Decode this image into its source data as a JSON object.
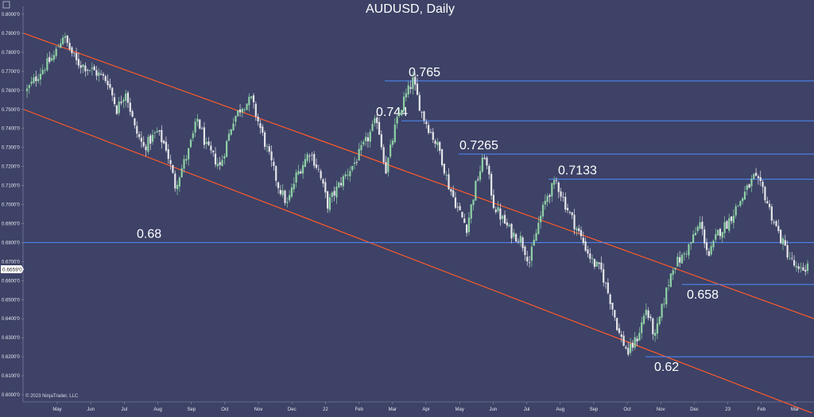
{
  "chart_data": {
    "type": "candlestick",
    "title": "AUDUSD, Daily",
    "symbol": "AUDUSD",
    "timeframe": "Daily",
    "copyright": "© 2023 NinjaTrader, LLC",
    "ylim": [
      0.6,
      0.8
    ],
    "y_ticks": [
      "0.8000'0",
      "0.7900'0",
      "0.7800'0",
      "0.7700'0",
      "0.7600'0",
      "0.7500'0",
      "0.7400'0",
      "0.7300'0",
      "0.7200'0",
      "0.7100'0",
      "0.7000'0",
      "0.6900'0",
      "0.6800'0",
      "0.6700'0",
      "0.6600'0",
      "0.6500'0",
      "0.6400'0",
      "0.6300'0",
      "0.6200'0",
      "0.6100'0",
      "0.6000'0"
    ],
    "x_ticks": [
      "May",
      "Jun",
      "Jul",
      "Aug",
      "Sep",
      "Oct",
      "Nov",
      "Dec",
      "22",
      "Feb",
      "Mar",
      "Apr",
      "May",
      "Jun",
      "Jul",
      "Aug",
      "Sep",
      "Oct",
      "Nov",
      "Dec",
      "23",
      "Feb",
      "Mar"
    ],
    "current_price": {
      "value": 0.6659,
      "label": "0.6659'0"
    },
    "price_path": [
      [
        0,
        0.76
      ],
      [
        6,
        0.77
      ],
      [
        12,
        0.778
      ],
      [
        16,
        0.789
      ],
      [
        22,
        0.775
      ],
      [
        30,
        0.77
      ],
      [
        36,
        0.765
      ],
      [
        40,
        0.75
      ],
      [
        44,
        0.76
      ],
      [
        48,
        0.74
      ],
      [
        52,
        0.73
      ],
      [
        58,
        0.738
      ],
      [
        62,
        0.73
      ],
      [
        66,
        0.71
      ],
      [
        72,
        0.728
      ],
      [
        76,
        0.745
      ],
      [
        80,
        0.73
      ],
      [
        86,
        0.72
      ],
      [
        92,
        0.745
      ],
      [
        96,
        0.752
      ],
      [
        100,
        0.755
      ],
      [
        104,
        0.74
      ],
      [
        108,
        0.725
      ],
      [
        112,
        0.71
      ],
      [
        116,
        0.7
      ],
      [
        120,
        0.715
      ],
      [
        126,
        0.728
      ],
      [
        130,
        0.718
      ],
      [
        134,
        0.7
      ],
      [
        140,
        0.712
      ],
      [
        146,
        0.722
      ],
      [
        152,
        0.735
      ],
      [
        156,
        0.745
      ],
      [
        160,
        0.718
      ],
      [
        164,
        0.74
      ],
      [
        168,
        0.755
      ],
      [
        172,
        0.765
      ],
      [
        176,
        0.748
      ],
      [
        180,
        0.738
      ],
      [
        184,
        0.728
      ],
      [
        188,
        0.71
      ],
      [
        192,
        0.698
      ],
      [
        196,
        0.688
      ],
      [
        200,
        0.71
      ],
      [
        204,
        0.726
      ],
      [
        208,
        0.7
      ],
      [
        212,
        0.692
      ],
      [
        216,
        0.685
      ],
      [
        220,
        0.682
      ],
      [
        224,
        0.67
      ],
      [
        228,
        0.69
      ],
      [
        232,
        0.705
      ],
      [
        236,
        0.712
      ],
      [
        240,
        0.7
      ],
      [
        244,
        0.69
      ],
      [
        248,
        0.68
      ],
      [
        252,
        0.67
      ],
      [
        256,
        0.665
      ],
      [
        260,
        0.65
      ],
      [
        264,
        0.632
      ],
      [
        268,
        0.622
      ],
      [
        272,
        0.63
      ],
      [
        276,
        0.645
      ],
      [
        280,
        0.63
      ],
      [
        284,
        0.65
      ],
      [
        288,
        0.668
      ],
      [
        292,
        0.672
      ],
      [
        296,
        0.68
      ],
      [
        300,
        0.69
      ],
      [
        304,
        0.673
      ],
      [
        308,
        0.685
      ],
      [
        312,
        0.69
      ],
      [
        316,
        0.698
      ],
      [
        320,
        0.706
      ],
      [
        324,
        0.714
      ],
      [
        328,
        0.708
      ],
      [
        332,
        0.694
      ],
      [
        336,
        0.682
      ],
      [
        340,
        0.672
      ],
      [
        344,
        0.664
      ],
      [
        348,
        0.668
      ]
    ],
    "levels": [
      {
        "value": 0.765,
        "label": "0.765"
      },
      {
        "value": 0.744,
        "label": "0.744"
      },
      {
        "value": 0.7265,
        "label": "0.7265"
      },
      {
        "value": 0.7133,
        "label": "0.7133"
      },
      {
        "value": 0.68,
        "label": "0.68"
      },
      {
        "value": 0.658,
        "label": "0.658"
      },
      {
        "value": 0.62,
        "label": "0.62"
      }
    ],
    "channel_lines": [
      {
        "name": "upper",
        "from": 0.79,
        "to": 0.64
      },
      {
        "name": "lower",
        "from": 0.75,
        "to": 0.59
      }
    ],
    "colors": {
      "background": "#3d4266",
      "up_candle": "#8fd1a6",
      "down_candle": "#e6e6ea",
      "level_line": "#4f8cff",
      "channel_line": "#ff5a2b",
      "text": "#ffffff"
    }
  }
}
